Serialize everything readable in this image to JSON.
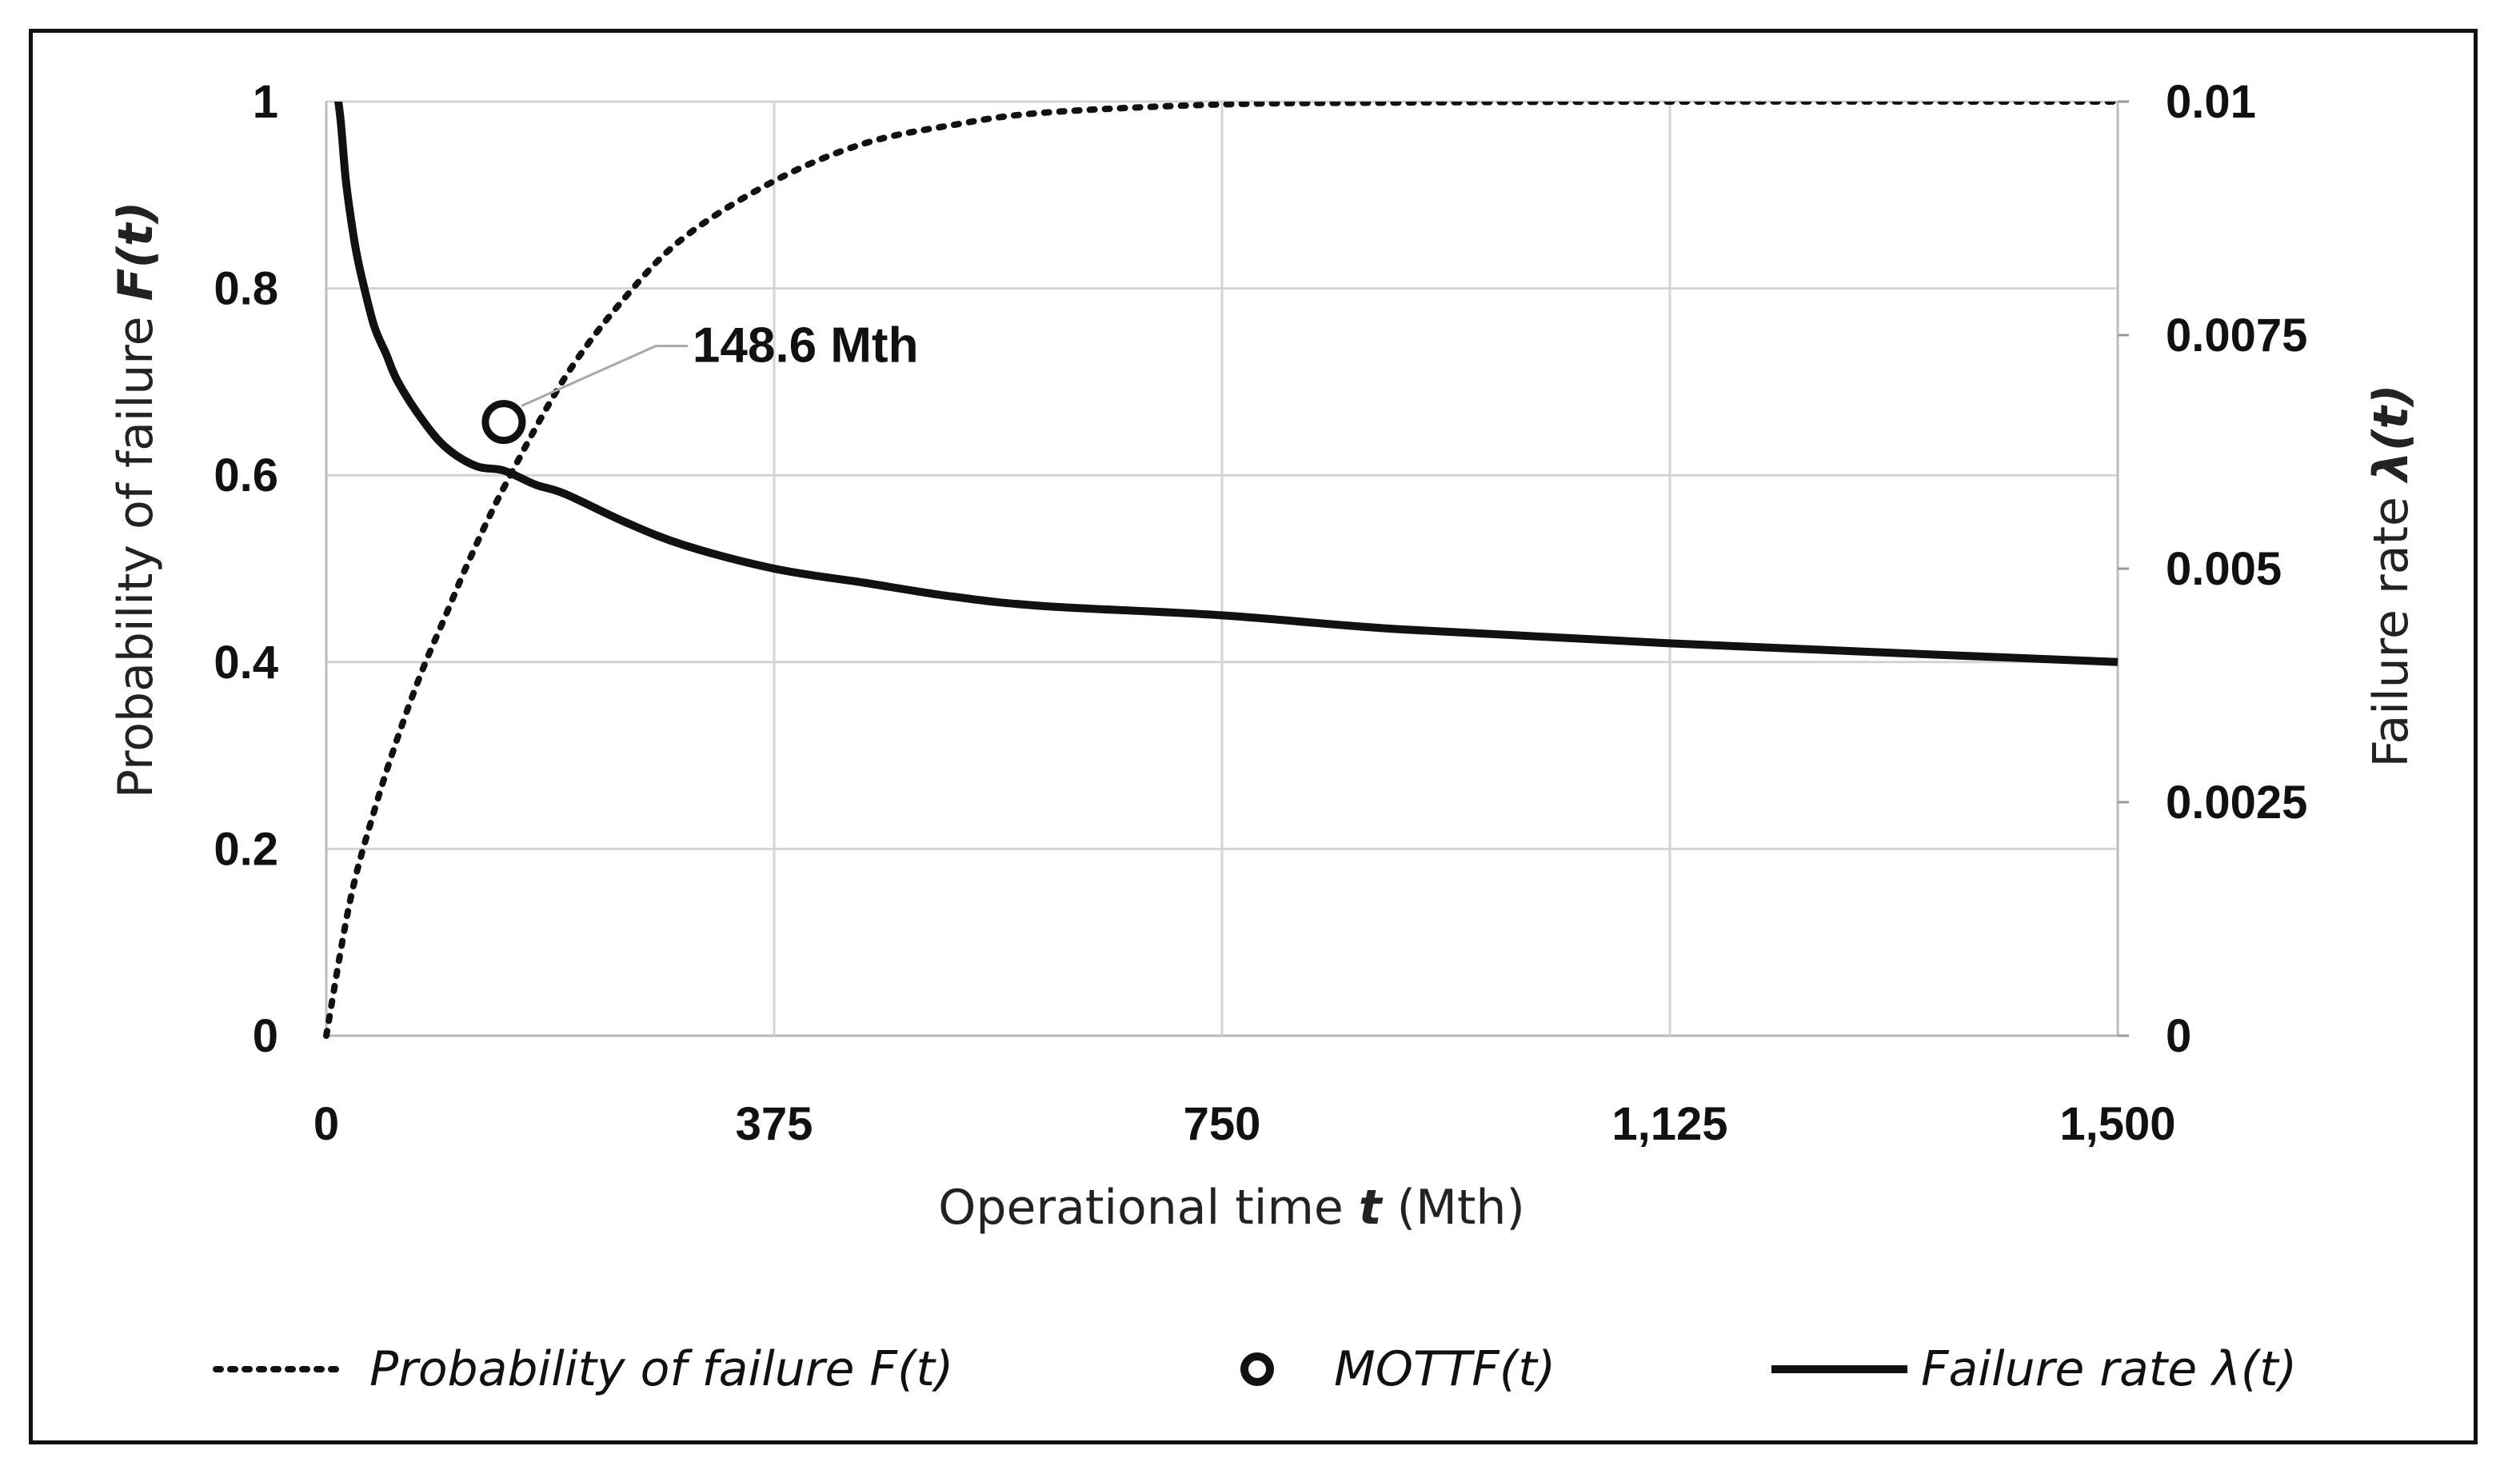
{
  "chart_data": {
    "type": "line",
    "x_axis": {
      "label_prefix": "Operational time ",
      "label_var": "t",
      "label_suffix": " (Mth)",
      "range": [
        0,
        1500
      ],
      "ticks": [
        0,
        375,
        750,
        1125,
        1500
      ],
      "tick_labels": [
        "0",
        "375",
        "750",
        "1,125",
        "1,500"
      ]
    },
    "y_left": {
      "label_prefix": "Probability of failure ",
      "label_var": "F(t)",
      "range": [
        0,
        1
      ],
      "ticks": [
        0,
        0.2,
        0.4,
        0.6,
        0.8,
        1
      ],
      "tick_labels": [
        "0",
        "0.2",
        "0.4",
        "0.6",
        "0.8",
        "1"
      ]
    },
    "y_right": {
      "label_prefix": "Failure rate ",
      "label_var": "λ(t)",
      "range": [
        0,
        0.01
      ],
      "ticks": [
        0,
        0.0025,
        0.005,
        0.0075,
        0.01
      ],
      "tick_labels": [
        "0",
        "0.0025",
        "0.005",
        "0.0075",
        "0.01"
      ]
    },
    "grid": true,
    "series": [
      {
        "name": "Probability of failure F(t)",
        "axis": "left",
        "style": "dotted",
        "x": [
          0,
          20,
          40,
          60,
          80,
          100,
          120,
          150,
          200,
          250,
          300,
          375,
          450,
          525,
          600,
          750,
          900,
          1125,
          1500
        ],
        "y": [
          0.0,
          0.145,
          0.24,
          0.32,
          0.39,
          0.45,
          0.51,
          0.59,
          0.705,
          0.79,
          0.855,
          0.915,
          0.955,
          0.975,
          0.988,
          0.997,
          0.999,
          1.0,
          1.0
        ]
      },
      {
        "name": "Failure rate λ(t)",
        "axis": "right",
        "style": "solid",
        "x": [
          8,
          12,
          16,
          20,
          25,
          30,
          40,
          50,
          60,
          80,
          100,
          125,
          148.6,
          175,
          200,
          250,
          300,
          375,
          450,
          525,
          600,
          750,
          900,
          1125,
          1500
        ],
        "y": [
          0.0102,
          0.0098,
          0.0092,
          0.0088,
          0.0084,
          0.0081,
          0.0076,
          0.0073,
          0.007,
          0.0066,
          0.0063,
          0.0061,
          0.00605,
          0.0059,
          0.0058,
          0.0055,
          0.00525,
          0.005,
          0.00485,
          0.0047,
          0.0046,
          0.0045,
          0.00435,
          0.0042,
          0.004
        ]
      }
    ],
    "markers": [
      {
        "name": "MOTTF(t)",
        "x": 148.6,
        "y": 0.657,
        "axis": "left"
      }
    ],
    "annotations": [
      {
        "text": "148.6  Mth",
        "x": 148.6,
        "y": 0.657
      }
    ],
    "legend": {
      "position": "bottom",
      "entries": [
        {
          "label": "Probability of failure F(t)",
          "style": "dotted"
        },
        {
          "label": "MOTTF(t)",
          "style": "circle-marker"
        },
        {
          "label": "Failure rate λ(t)",
          "style": "solid"
        }
      ]
    }
  }
}
